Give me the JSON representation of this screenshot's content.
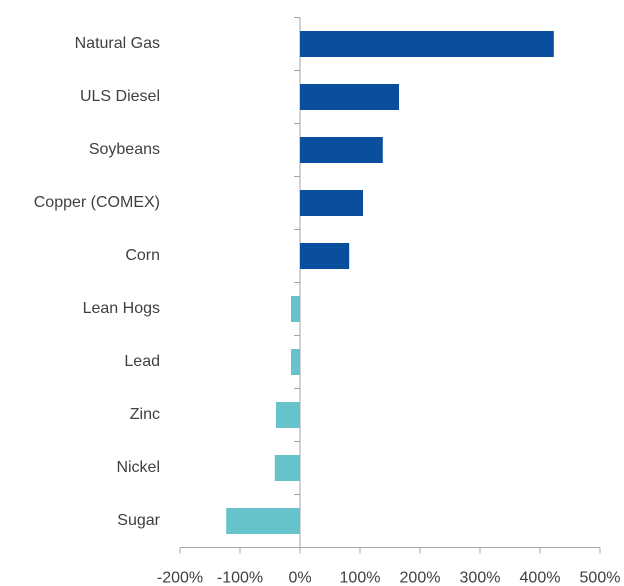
{
  "chart_data": {
    "type": "bar",
    "orientation": "horizontal",
    "categories": [
      "Natural Gas",
      "ULS Diesel",
      "Soybeans",
      "Copper (COMEX)",
      "Corn",
      "Lean Hogs",
      "Lead",
      "Zinc",
      "Nickel",
      "Sugar"
    ],
    "values": [
      423,
      165,
      138,
      105,
      82,
      -15,
      -15,
      -40,
      -42,
      -123
    ],
    "colors": [
      "#0a4f9e",
      "#0a4f9e",
      "#0a4f9e",
      "#0a4f9e",
      "#0a4f9e",
      "#66c3cc",
      "#66c3cc",
      "#66c3cc",
      "#66c3cc",
      "#66c3cc"
    ],
    "xlim": [
      -200,
      500
    ],
    "xticks": [
      {
        "value": -200,
        "label": "-200%"
      },
      {
        "value": -100,
        "label": "-100%"
      },
      {
        "value": 0,
        "label": "0%"
      },
      {
        "value": 100,
        "label": "100%"
      },
      {
        "value": 200,
        "label": "200%"
      },
      {
        "value": 300,
        "label": "300%"
      },
      {
        "value": 400,
        "label": "400%"
      },
      {
        "value": 500,
        "label": "500%"
      }
    ]
  }
}
